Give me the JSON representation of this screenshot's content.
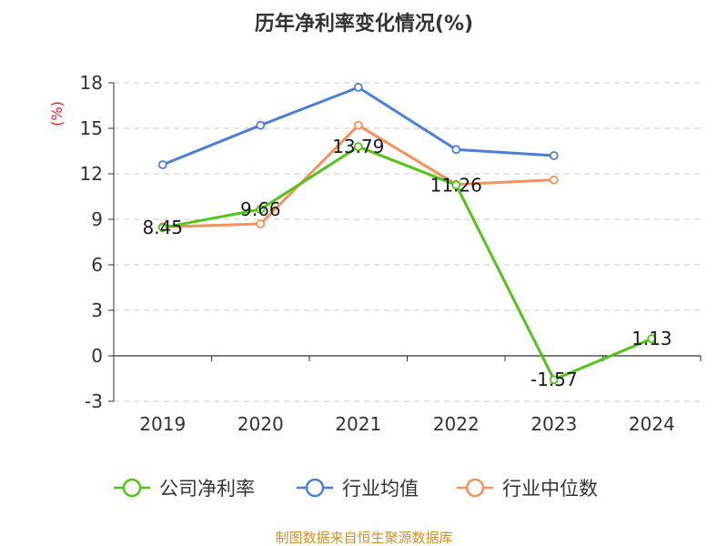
{
  "chart_data": {
    "type": "line",
    "title": "历年净利率变化情况(%)",
    "y_unit": "(%)",
    "categories": [
      "2019",
      "2020",
      "2021",
      "2022",
      "2023",
      "2024"
    ],
    "ylim": [
      -3,
      18
    ],
    "y_ticks": [
      -3,
      0,
      3,
      6,
      9,
      12,
      15,
      18
    ],
    "grid": true,
    "legend_position": "bottom",
    "series": [
      {
        "name": "公司净利率",
        "color": "#52c41a",
        "values": [
          8.45,
          9.66,
          13.79,
          11.26,
          -1.57,
          1.13
        ],
        "labels": [
          "8.45",
          "9.66",
          "13.79",
          "11.26",
          "-1.57",
          "1.13"
        ]
      },
      {
        "name": "行业均值",
        "color": "#4a7fd8",
        "values": [
          12.6,
          15.2,
          17.7,
          13.6,
          13.2,
          null
        ]
      },
      {
        "name": "行业中位数",
        "color": "#f5915a",
        "values": [
          8.5,
          8.7,
          15.2,
          11.3,
          11.6,
          null
        ]
      }
    ],
    "source": "制图数据来自恒生聚源数据库"
  }
}
